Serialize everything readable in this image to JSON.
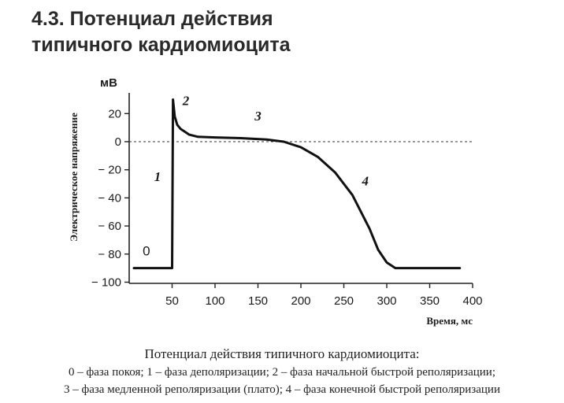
{
  "figure": {
    "title_line1": "4.3. Потенциал действия",
    "title_line2": "типичного кардиомиоцита"
  },
  "caption": {
    "title": "Потенциал действия типичного кардиомиоцита:",
    "line1": "0 – фаза покоя; 1 – фаза деполяризации; 2 – фаза начальной быстрой реполяризации;",
    "line2": "3 – фаза медленной реполяризации (плато); 4 – фаза конечной быстрой реполяризации"
  },
  "chart_data": {
    "type": "line",
    "title": "",
    "xlabel": "Время, мс",
    "ylabel": "Электрическое напряжение",
    "yunit": "мВ",
    "xlim": [
      0,
      400
    ],
    "ylim": [
      -100,
      30
    ],
    "xticks": [
      50,
      100,
      150,
      200,
      250,
      300,
      350,
      400
    ],
    "yticks": [
      20,
      0,
      -20,
      -40,
      -60,
      -80,
      -100
    ],
    "grid": false,
    "reference_line": {
      "y": 0,
      "style": "dashed"
    },
    "series": [
      {
        "x": [
          0,
          48,
          50,
          51,
          53,
          56,
          60,
          65,
          70,
          80,
          100,
          130,
          160,
          180,
          200,
          220,
          240,
          260,
          280,
          290,
          300,
          310,
          320,
          350,
          385
        ],
        "y": [
          -90,
          -90,
          -90,
          30,
          18,
          12,
          9,
          7,
          5,
          3.5,
          3,
          2.5,
          1.5,
          0,
          -4,
          -11,
          -22,
          -38,
          -62,
          -77,
          -86,
          -90,
          -90,
          -90,
          -90
        ]
      }
    ],
    "phase_labels": [
      {
        "text": "0",
        "x": 20,
        "y": -81
      },
      {
        "text": "1",
        "x": 33,
        "y": -28
      },
      {
        "text": "2",
        "x": 66,
        "y": 26
      },
      {
        "text": "3",
        "x": 150,
        "y": 15
      },
      {
        "text": "4",
        "x": 275,
        "y": -31
      }
    ]
  }
}
